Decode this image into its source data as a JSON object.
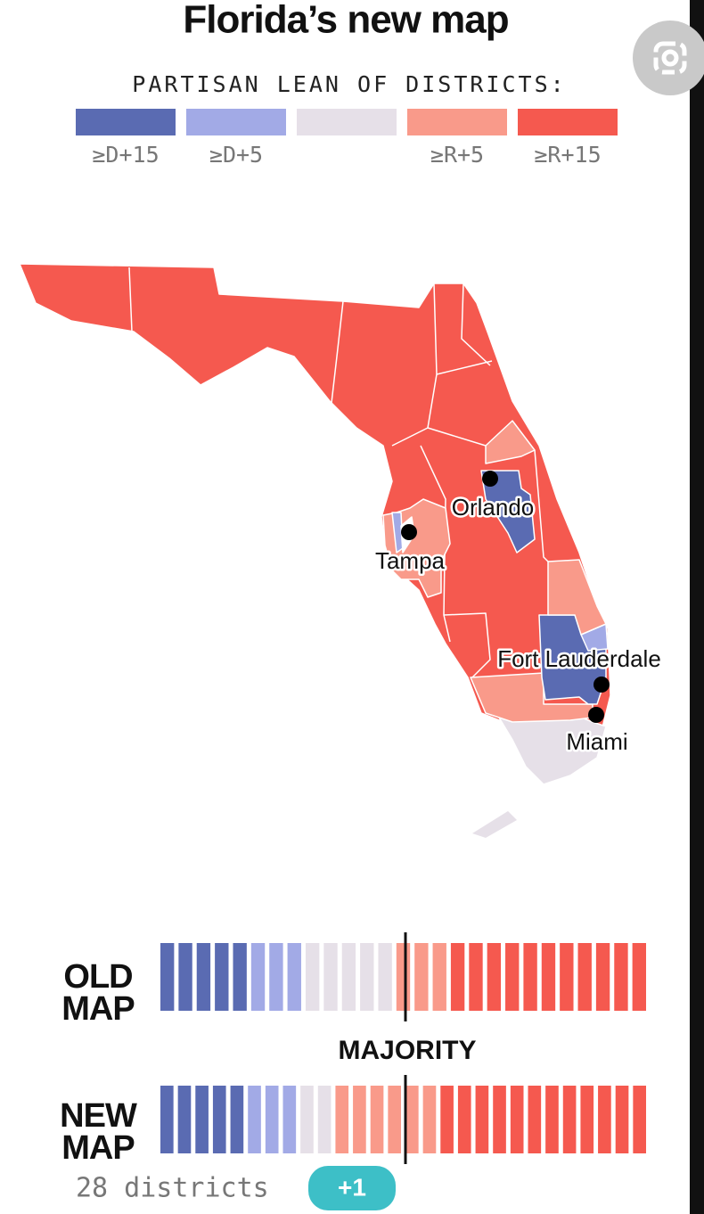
{
  "header": {
    "title": "Florida’s new map"
  },
  "legend": {
    "title": "PARTISAN LEAN OF DISTRICTS:",
    "items": [
      {
        "label": "≥D+15",
        "color": "#5a6bb2"
      },
      {
        "label": "≥D+5",
        "color": "#a2aae6"
      },
      {
        "color": "#e6e0e8"
      },
      {
        "label": "≥R+5",
        "color": "#f99a8a"
      },
      {
        "label": "≥R+15",
        "color": "#f5594f"
      }
    ]
  },
  "map": {
    "cities": [
      "Orlando",
      "Tampa",
      "Fort Lauderdale",
      "Miami"
    ]
  },
  "comparison": {
    "rows": [
      {
        "label": "OLD MAP",
        "counts": [
          5,
          3,
          5,
          3,
          11
        ]
      },
      {
        "label": "NEW MAP",
        "counts": [
          5,
          3,
          2,
          6,
          12
        ]
      }
    ],
    "majority_label": "MAJORITY",
    "footer": "28 districts",
    "change": "+1"
  }
}
